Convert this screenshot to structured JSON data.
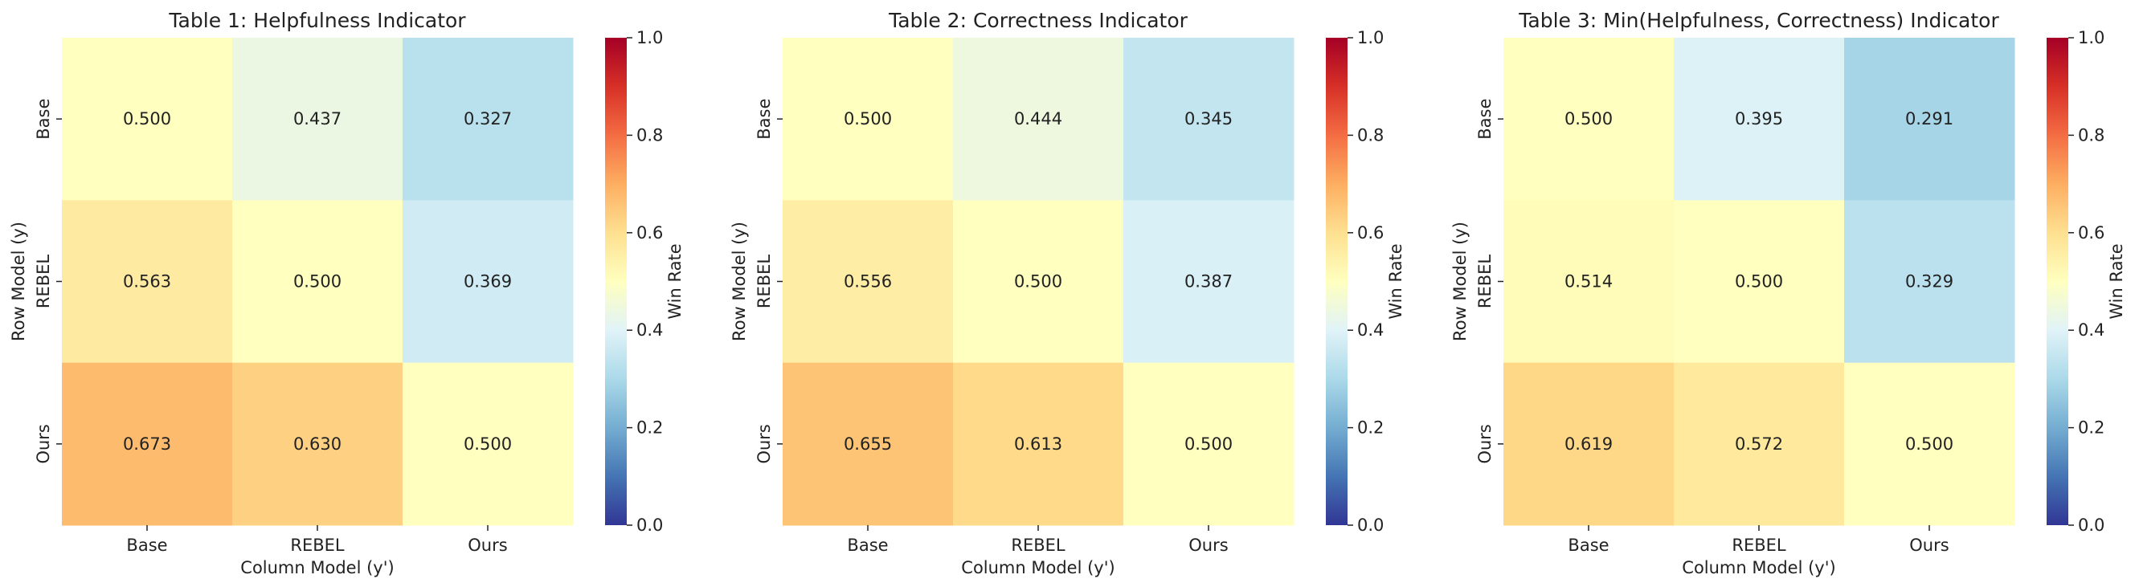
{
  "chart_data": [
    {
      "type": "heatmap",
      "title": "Table 1: Helpfulness Indicator",
      "xlabel": "Column Model (y')",
      "ylabel": "Row Model (y)",
      "x_categories": [
        "Base",
        "REBEL",
        "Ours"
      ],
      "y_categories": [
        "Base",
        "REBEL",
        "Ours"
      ],
      "values": [
        [
          0.5,
          0.437,
          0.327
        ],
        [
          0.563,
          0.5,
          0.369
        ],
        [
          0.673,
          0.63,
          0.5
        ]
      ],
      "value_labels": [
        [
          "0.500",
          "0.437",
          "0.327"
        ],
        [
          "0.563",
          "0.500",
          "0.369"
        ],
        [
          "0.673",
          "0.630",
          "0.500"
        ]
      ],
      "colorbar": {
        "label": "Win Rate",
        "range": [
          0,
          1
        ],
        "ticks": [
          "0.0",
          "0.2",
          "0.4",
          "0.6",
          "0.8",
          "1.0"
        ],
        "colormap": "RdYlBu_r"
      }
    },
    {
      "type": "heatmap",
      "title": "Table 2: Correctness Indicator",
      "xlabel": "Column Model (y')",
      "ylabel": "Row Model (y)",
      "x_categories": [
        "Base",
        "REBEL",
        "Ours"
      ],
      "y_categories": [
        "Base",
        "REBEL",
        "Ours"
      ],
      "values": [
        [
          0.5,
          0.444,
          0.345
        ],
        [
          0.556,
          0.5,
          0.387
        ],
        [
          0.655,
          0.613,
          0.5
        ]
      ],
      "value_labels": [
        [
          "0.500",
          "0.444",
          "0.345"
        ],
        [
          "0.556",
          "0.500",
          "0.387"
        ],
        [
          "0.655",
          "0.613",
          "0.500"
        ]
      ],
      "colorbar": {
        "label": "Win Rate",
        "range": [
          0,
          1
        ],
        "ticks": [
          "0.0",
          "0.2",
          "0.4",
          "0.6",
          "0.8",
          "1.0"
        ],
        "colormap": "RdYlBu_r"
      }
    },
    {
      "type": "heatmap",
      "title": "Table 3: Min(Helpfulness, Correctness) Indicator",
      "xlabel": "Column Model (y')",
      "ylabel": "Row Model (y)",
      "x_categories": [
        "Base",
        "REBEL",
        "Ours"
      ],
      "y_categories": [
        "Base",
        "REBEL",
        "Ours"
      ],
      "values": [
        [
          0.5,
          0.395,
          0.291
        ],
        [
          0.514,
          0.5,
          0.329
        ],
        [
          0.619,
          0.572,
          0.5
        ]
      ],
      "value_labels": [
        [
          "0.500",
          "0.395",
          "0.291"
        ],
        [
          "0.514",
          "0.500",
          "0.329"
        ],
        [
          "0.619",
          "0.572",
          "0.500"
        ]
      ],
      "colorbar": {
        "label": "Win Rate",
        "range": [
          0,
          1
        ],
        "ticks": [
          "0.0",
          "0.2",
          "0.4",
          "0.6",
          "0.8",
          "1.0"
        ],
        "colormap": "RdYlBu_r"
      }
    }
  ]
}
